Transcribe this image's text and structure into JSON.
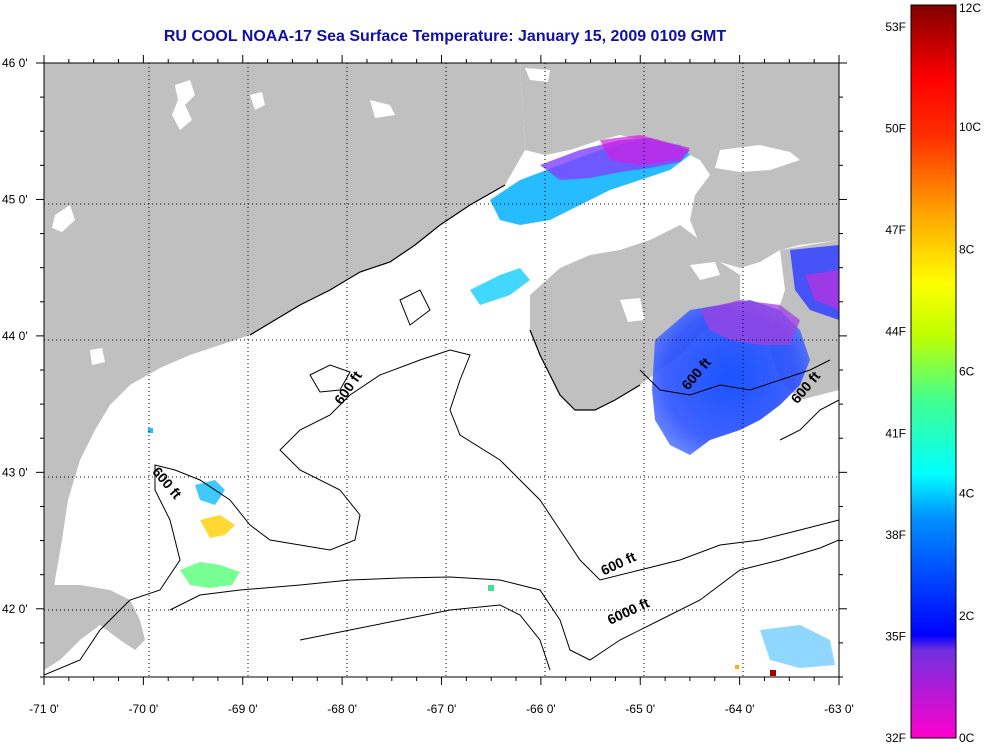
{
  "title": "RU COOL  NOAA-17  Sea Surface Temperature:  January 15, 2009 0109 GMT",
  "map": {
    "lon_range": [
      -71,
      -63
    ],
    "lat_range": [
      41.5,
      46
    ],
    "x_ticks": [
      "-71 0'",
      "-70 0'",
      "-69 0'",
      "-68 0'",
      "-67 0'",
      "-66 0'",
      "-65 0'",
      "-64 0'",
      "-63 0'"
    ],
    "x_tick_values": [
      -71,
      -70,
      -69,
      -68,
      -67,
      -66,
      -65,
      -64,
      -63
    ],
    "y_ticks": [
      "46 0'",
      "45 0'",
      "44 0'",
      "43 0'",
      "42 0'"
    ],
    "y_tick_values": [
      46,
      45,
      44,
      43,
      42
    ],
    "grid": "dotted",
    "contour_labels": [
      {
        "text": "600 ft",
        "lon": -67.9,
        "lat": 43.6,
        "angle": -55
      },
      {
        "text": "600 ft",
        "lon": -69.8,
        "lat": 42.9,
        "angle": 50
      },
      {
        "text": "600 ft",
        "lon": -64.4,
        "lat": 43.7,
        "angle": -50
      },
      {
        "text": "600 ft",
        "lon": -63.3,
        "lat": 43.6,
        "angle": -50
      },
      {
        "text": "600 ft",
        "lon": -65.2,
        "lat": 42.3,
        "angle": -25
      },
      {
        "text": "6000 ft",
        "lon": -65.1,
        "lat": 41.95,
        "angle": -25
      }
    ],
    "land_color": "#c0c0c0",
    "water_color": "#ffffff"
  },
  "colorbar": {
    "fahrenheit_labels": [
      "53F",
      "50F",
      "47F",
      "44F",
      "41F",
      "38F",
      "35F",
      "32F"
    ],
    "celsius_labels": [
      "12C",
      "10C",
      "8C",
      "6C",
      "4C",
      "2C",
      "0C"
    ],
    "stops": [
      "#ff00cc",
      "#a020f0",
      "#0000ff",
      "#00a0ff",
      "#00ffff",
      "#40ff80",
      "#c0ff00",
      "#ffff00",
      "#ffb000",
      "#ff6000",
      "#ff0000",
      "#800000"
    ]
  }
}
